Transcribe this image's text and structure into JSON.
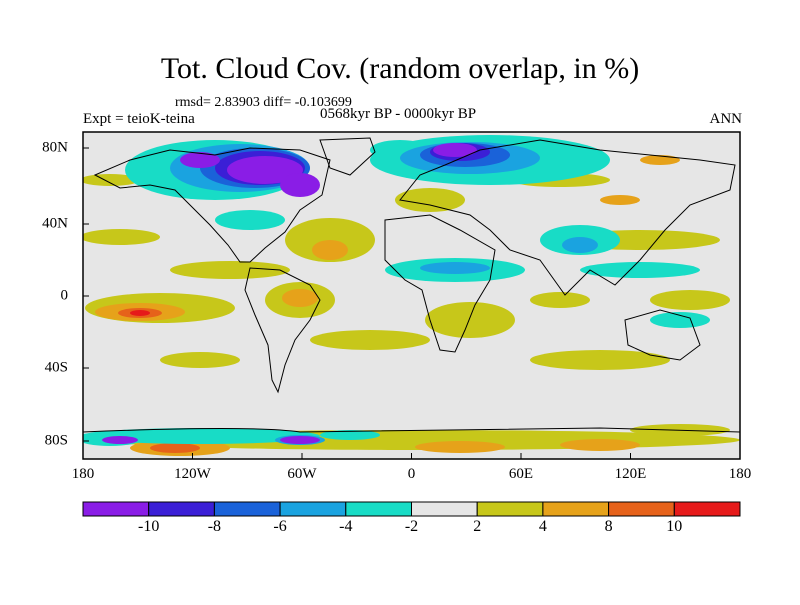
{
  "title": "Tot. Cloud Cov. (random overlap, in %)",
  "stats": "rmsd= 2.83903  diff= -0.103699",
  "experiment": "Expt = teioK-teina",
  "period": "0568kyr BP - 0000kyr BP",
  "season": "ANN",
  "lat_ticks": [
    "80N",
    "40N",
    "0",
    "40S",
    "80S"
  ],
  "lon_ticks": [
    "180",
    "120W",
    "60W",
    "0",
    "60E",
    "120E",
    "180"
  ],
  "colorbar": {
    "labels": [
      "-10",
      "-8",
      "-6",
      "-4",
      "-2",
      "2",
      "4",
      "8",
      "10"
    ],
    "colors": [
      "#8a1de6",
      "#3b1fd6",
      "#1a62d9",
      "#1aa3e0",
      "#18dcc6",
      "#e6e6e6",
      "#c7c71a",
      "#e6a21a",
      "#e6621a",
      "#e61a1a"
    ]
  },
  "colors": {
    "ocean_background": "#e6e6e6",
    "coastline": "#000000"
  }
}
